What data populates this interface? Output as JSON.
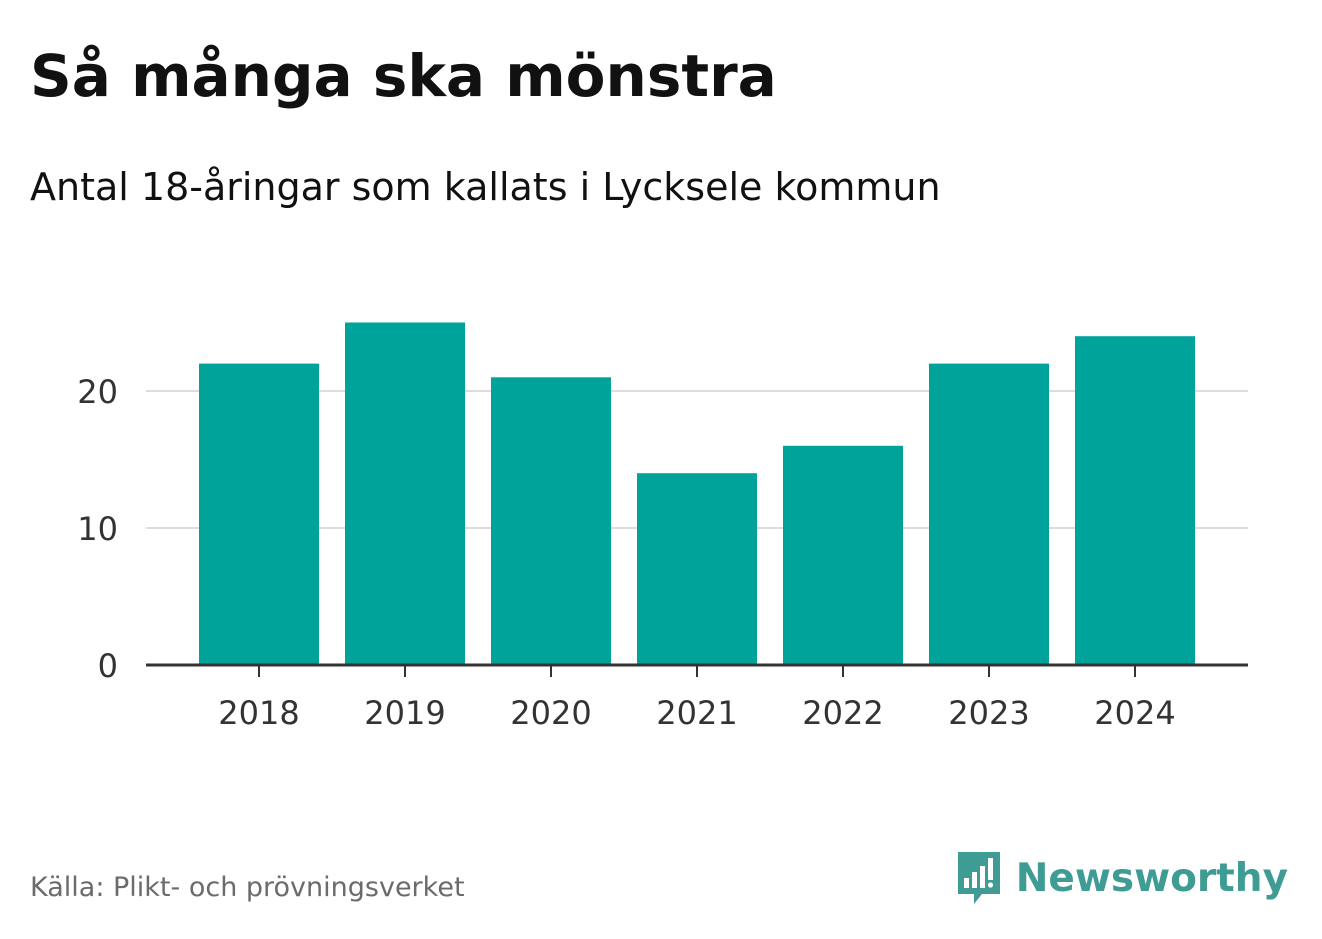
{
  "header": {
    "title": "Så många ska mönstra",
    "subtitle": "Antal 18-åringar som kallats i Lycksele kommun"
  },
  "footer": {
    "source": "Källa: Plikt- och prövningsverket",
    "brand": "Newsworthy",
    "brand_icon": "bar-chart-speech-bubble-icon"
  },
  "colors": {
    "bar": "#00a39a",
    "grid": "#dddddd",
    "axis": "#333333",
    "tick_text": "#333333",
    "brand": "#3e9c94"
  },
  "chart_data": {
    "type": "bar",
    "title": "Så många ska mönstra",
    "subtitle": "Antal 18-åringar som kallats i Lycksele kommun",
    "categories": [
      "2018",
      "2019",
      "2020",
      "2021",
      "2022",
      "2023",
      "2024"
    ],
    "values": [
      22,
      25,
      21,
      14,
      16,
      22,
      24
    ],
    "xlabel": "",
    "ylabel": "",
    "ylim": [
      0,
      25
    ],
    "yticks": [
      0,
      10,
      20
    ],
    "ytick_labels": [
      "0",
      "10",
      "20"
    ],
    "grid": true,
    "legend": "none"
  }
}
